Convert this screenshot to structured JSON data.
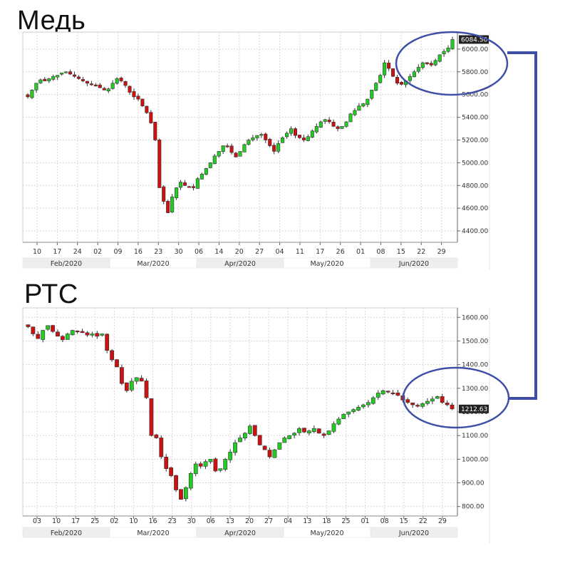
{
  "titles": {
    "copper": "Медь",
    "rts": "РТС"
  },
  "colors": {
    "up": "#22cc22",
    "down": "#cc1111",
    "highlight": "#3f4fa6",
    "month_band": "#eeeeee"
  },
  "chart_data": [
    {
      "id": "copper",
      "type": "candlestick",
      "title": "Медь",
      "x_ticks": [
        "10",
        "17",
        "24",
        "02",
        "09",
        "16",
        "23",
        "30",
        "06",
        "14",
        "20",
        "27",
        "04",
        "11",
        "17",
        "26",
        "01",
        "08",
        "15",
        "22",
        "29"
      ],
      "months": [
        "Feb/2020",
        "Mar/2020",
        "Apr/2020",
        "May/2020",
        "Jun/2020"
      ],
      "ylim": [
        4300,
        6150
      ],
      "y_ticks": [
        "4400.00",
        "4600.00",
        "4800.00",
        "5000.00",
        "5200.00",
        "5400.00",
        "5600.00",
        "5800.00",
        "6000.00"
      ],
      "last_value": "6084.50",
      "close": [
        5580,
        5640,
        5700,
        5730,
        5720,
        5740,
        5760,
        5770,
        5790,
        5800,
        5780,
        5760,
        5740,
        5720,
        5700,
        5690,
        5680,
        5660,
        5640,
        5650,
        5700,
        5740,
        5720,
        5680,
        5620,
        5580,
        5560,
        5500,
        5440,
        5350,
        5200,
        4780,
        4660,
        4560,
        4700,
        4780,
        4830,
        4800,
        4790,
        4780,
        4860,
        4900,
        4950,
        5000,
        5060,
        5100,
        5150,
        5140,
        5090,
        5050,
        5100,
        5160,
        5200,
        5220,
        5240,
        5250,
        5200,
        5150,
        5100,
        5170,
        5220,
        5260,
        5300,
        5240,
        5220,
        5200,
        5230,
        5280,
        5320,
        5360,
        5380,
        5360,
        5320,
        5300,
        5320,
        5360,
        5430,
        5460,
        5500,
        5520,
        5560,
        5640,
        5700,
        5770,
        5880,
        5830,
        5760,
        5700,
        5690,
        5720,
        5760,
        5800,
        5840,
        5880,
        5870,
        5860,
        5900,
        5950,
        5980,
        6010,
        6084.5
      ]
    },
    {
      "id": "rts",
      "type": "candlestick",
      "title": "РТС",
      "x_ticks": [
        "03",
        "10",
        "17",
        "25",
        "02",
        "10",
        "16",
        "23",
        "30",
        "06",
        "13",
        "20",
        "27",
        "04",
        "13",
        "18",
        "25",
        "01",
        "08",
        "15",
        "22",
        "29"
      ],
      "months": [
        "Feb/2020",
        "Mar/2020",
        "Apr/2020",
        "May/2020",
        "Jun/2020"
      ],
      "ylim": [
        760,
        1640
      ],
      "y_ticks": [
        "800.00",
        "900.00",
        "1000.00",
        "1100.00",
        "1200.00",
        "1300.00",
        "1400.00",
        "1500.00",
        "1600.00"
      ],
      "last_value": "1212.63",
      "close": [
        1560,
        1530,
        1510,
        1545,
        1565,
        1540,
        1520,
        1505,
        1530,
        1545,
        1540,
        1535,
        1525,
        1530,
        1520,
        1530,
        1460,
        1420,
        1390,
        1320,
        1290,
        1330,
        1345,
        1330,
        1260,
        1100,
        1090,
        1010,
        960,
        930,
        870,
        830,
        880,
        940,
        980,
        970,
        990,
        1000,
        950,
        960,
        1000,
        1030,
        1070,
        1090,
        1110,
        1140,
        1100,
        1060,
        1040,
        1010,
        1040,
        1070,
        1090,
        1100,
        1110,
        1130,
        1115,
        1120,
        1130,
        1110,
        1100,
        1120,
        1150,
        1170,
        1190,
        1200,
        1210,
        1220,
        1230,
        1240,
        1260,
        1280,
        1290,
        1285,
        1280,
        1270,
        1250,
        1240,
        1230,
        1225,
        1235,
        1245,
        1255,
        1265,
        1240,
        1230,
        1212.63
      ]
    }
  ]
}
